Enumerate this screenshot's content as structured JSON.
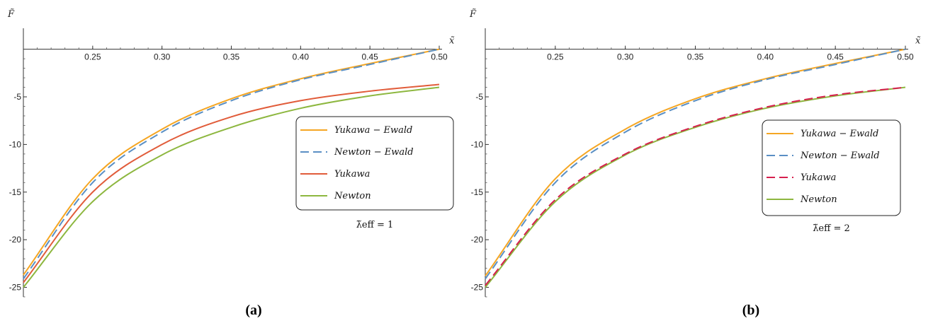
{
  "chart_data": [
    {
      "type": "line",
      "panel_label": "(a)",
      "xlabel": "x̃",
      "ylabel": "F̃",
      "xlim": [
        0.2,
        0.5
      ],
      "ylim": [
        -26,
        2.2
      ],
      "x_ticks": [
        "0.25",
        "0.30",
        "0.35",
        "0.40",
        "0.45",
        "0.50"
      ],
      "y_ticks": [
        "-5",
        "-10",
        "-15",
        "-20",
        "-25"
      ],
      "annotation": "λ̃eff = 1",
      "legend_position": "right",
      "series": [
        {
          "name": "Yukawa − Ewald",
          "color": "#F5A623",
          "dash": "solid",
          "x": [
            0.2,
            0.25,
            0.3,
            0.35,
            0.4,
            0.45,
            0.5
          ],
          "y": [
            -23.7,
            -13.6,
            -8.4,
            -5.2,
            -3.1,
            -1.5,
            0.0
          ]
        },
        {
          "name": "Newton − Ewald",
          "color": "#5A8FC4",
          "dash": "dashed",
          "x": [
            0.2,
            0.25,
            0.3,
            0.35,
            0.4,
            0.45,
            0.5
          ],
          "y": [
            -24.1,
            -14.0,
            -8.7,
            -5.4,
            -3.2,
            -1.6,
            0.0
          ]
        },
        {
          "name": "Yukawa",
          "color": "#E15C3A",
          "dash": "solid",
          "x": [
            0.2,
            0.25,
            0.3,
            0.35,
            0.4,
            0.45,
            0.5
          ],
          "y": [
            -24.5,
            -15.0,
            -10.0,
            -7.1,
            -5.4,
            -4.4,
            -3.7
          ]
        },
        {
          "name": "Newton",
          "color": "#8DB73F",
          "dash": "solid",
          "x": [
            0.2,
            0.25,
            0.3,
            0.35,
            0.4,
            0.45,
            0.5
          ],
          "y": [
            -25.0,
            -16.0,
            -11.1,
            -8.2,
            -6.2,
            -4.9,
            -4.0
          ]
        }
      ]
    },
    {
      "type": "line",
      "panel_label": "(b)",
      "xlabel": "x̃",
      "ylabel": "F̃",
      "xlim": [
        0.2,
        0.5
      ],
      "ylim": [
        -26,
        2.2
      ],
      "x_ticks": [
        "0.25",
        "0.30",
        "0.35",
        "0.40",
        "0.45",
        "0.50"
      ],
      "y_ticks": [
        "-5",
        "-10",
        "-15",
        "-20",
        "-25"
      ],
      "annotation": "λ̃eff = 2",
      "legend_position": "right",
      "series": [
        {
          "name": "Yukawa − Ewald",
          "color": "#F5A623",
          "dash": "solid",
          "x": [
            0.2,
            0.25,
            0.3,
            0.35,
            0.4,
            0.45,
            0.5
          ],
          "y": [
            -23.8,
            -13.6,
            -8.4,
            -5.2,
            -3.1,
            -1.5,
            0.0
          ]
        },
        {
          "name": "Newton − Ewald",
          "color": "#5A8FC4",
          "dash": "dashed",
          "x": [
            0.2,
            0.25,
            0.3,
            0.35,
            0.4,
            0.45,
            0.5
          ],
          "y": [
            -24.1,
            -14.0,
            -8.7,
            -5.4,
            -3.2,
            -1.6,
            0.0
          ]
        },
        {
          "name": "Yukawa",
          "color": "#D6204E",
          "dash": "dashed",
          "x": [
            0.2,
            0.25,
            0.3,
            0.35,
            0.4,
            0.45,
            0.5
          ],
          "y": [
            -24.8,
            -15.8,
            -11.0,
            -8.1,
            -6.1,
            -4.8,
            -4.0
          ]
        },
        {
          "name": "Newton",
          "color": "#8DB73F",
          "dash": "solid",
          "x": [
            0.2,
            0.25,
            0.3,
            0.35,
            0.4,
            0.45,
            0.5
          ],
          "y": [
            -25.0,
            -16.0,
            -11.1,
            -8.2,
            -6.2,
            -4.9,
            -4.0
          ]
        }
      ]
    }
  ]
}
